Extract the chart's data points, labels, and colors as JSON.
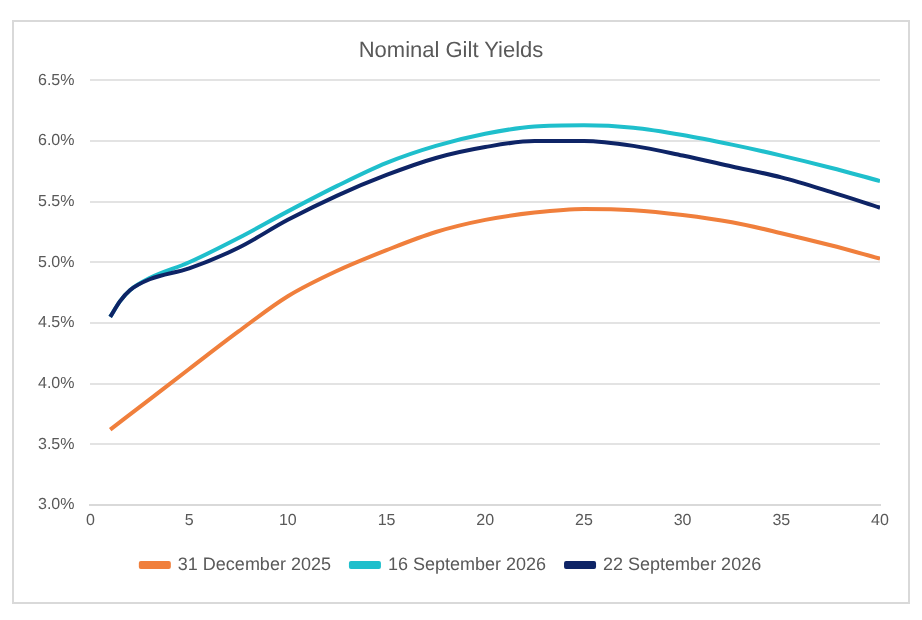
{
  "chart_data": {
    "type": "line",
    "title": "Nominal Gilt Yields",
    "xlim": [
      0,
      40
    ],
    "xticks": [
      0,
      5,
      10,
      15,
      20,
      25,
      30,
      35,
      40
    ],
    "ylim": [
      3.0,
      6.5
    ],
    "yticks": [
      {
        "value": 3.0,
        "label": "3.0%"
      },
      {
        "value": 3.5,
        "label": "3.5%"
      },
      {
        "value": 4.0,
        "label": "4.0%"
      },
      {
        "value": 4.5,
        "label": "4.5%"
      },
      {
        "value": 5.0,
        "label": "5.0%"
      },
      {
        "value": 5.5,
        "label": "5.5%"
      },
      {
        "value": 6.0,
        "label": "6.0%"
      },
      {
        "value": 6.5,
        "label": "6.5%"
      }
    ],
    "grid": "y",
    "legend": "bottom",
    "marker": "none",
    "series": [
      {
        "name": "31 December 2025",
        "color": "#f07f3c",
        "x": [
          1,
          3,
          5,
          7.5,
          10,
          12.5,
          15,
          17.5,
          20,
          22.5,
          25,
          27.5,
          30,
          32.5,
          35,
          37.5,
          40
        ],
        "values": [
          3.62,
          3.87,
          4.12,
          4.43,
          4.72,
          4.93,
          5.1,
          5.25,
          5.35,
          5.41,
          5.44,
          5.43,
          5.39,
          5.33,
          5.24,
          5.14,
          5.03
        ]
      },
      {
        "name": "16 September 2026",
        "color": "#1fbfcc",
        "x": [
          1,
          1.5,
          2,
          3,
          5,
          7.5,
          10,
          12.5,
          15,
          17.5,
          20,
          22.5,
          25,
          27.5,
          30,
          32.5,
          35,
          37.5,
          40
        ],
        "values": [
          4.55,
          4.68,
          4.77,
          4.87,
          5.0,
          5.2,
          5.42,
          5.63,
          5.82,
          5.96,
          6.06,
          6.12,
          6.13,
          6.11,
          6.05,
          5.97,
          5.88,
          5.78,
          5.67
        ]
      },
      {
        "name": "22 September 2026",
        "color": "#0e2466",
        "x": [
          1,
          1.5,
          2,
          3,
          5,
          7.5,
          10,
          12.5,
          15,
          17.5,
          20,
          22.5,
          25,
          27.5,
          30,
          32.5,
          35,
          37.5,
          40
        ],
        "values": [
          4.55,
          4.68,
          4.77,
          4.86,
          4.95,
          5.12,
          5.35,
          5.55,
          5.72,
          5.86,
          5.95,
          6.0,
          6.0,
          5.96,
          5.88,
          5.79,
          5.7,
          5.58,
          5.45
        ]
      }
    ]
  }
}
